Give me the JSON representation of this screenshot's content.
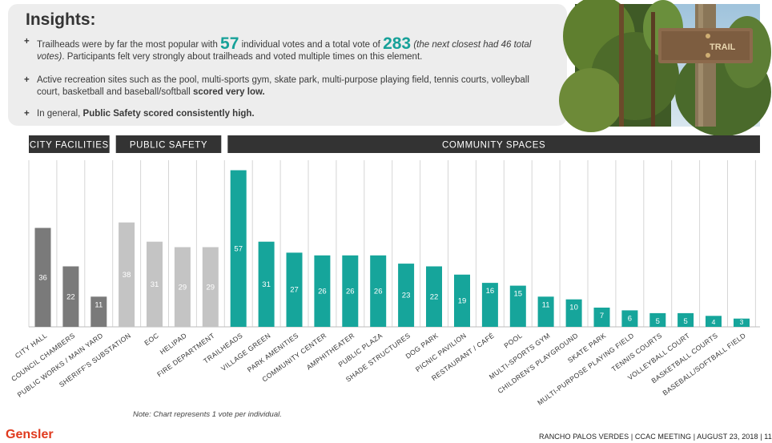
{
  "insights": {
    "title": "Insights:",
    "bullet_mark": "+",
    "b1_t1": "Trailheads were by far the most popular with ",
    "b1_n1": "57",
    "b1_t2": " individual votes and a total vote of ",
    "b1_n2": "283",
    "b1_em": "(the next closest had 46 total votes)",
    "b1_t3": ". Participants felt very strongly about trailheads and voted multiple times on this element.",
    "b2_t1": "Active recreation sites such as the pool, multi-sports gym, skate park, multi-purpose playing field, tennis courts, volleyball court, basketball and baseball/softball ",
    "b2_bold": "scored very low.",
    "b3_t1": "In general, ",
    "b3_bold": "Public Safety scored consistently high."
  },
  "photo": {
    "sign_text": "TRAIL"
  },
  "chart_data": {
    "type": "bar",
    "ylim": [
      0,
      60
    ],
    "grid": "vertical separators",
    "groups": [
      {
        "name": "CITY FACILITIES",
        "color": "#7a7a7a",
        "categories": [
          "CITY HALL",
          "COUNCIL CHAMBERS",
          "PUBLIC WORKS / MAIN YARD"
        ],
        "values": [
          36,
          22,
          11
        ]
      },
      {
        "name": "PUBLIC SAFETY",
        "color": "#c4c4c4",
        "categories": [
          "SHERIFF'S SUBSTATION",
          "EOC",
          "HELIPAD",
          "FIRE DEPARTMENT"
        ],
        "values": [
          38,
          31,
          29,
          29
        ]
      },
      {
        "name": "COMMUNITY SPACES",
        "color": "#16a59b",
        "categories": [
          "TRAILHEADS",
          "VILLAGE GREEN",
          "PARK AMENITIES",
          "COMMUNITY CENTER",
          "AMPHITHEATER",
          "PUBLIC PLAZA",
          "SHADE STRUCTURES",
          "DOG PARK",
          "PICNIC PAVILION",
          "RESTAURANT / CAFÉ",
          "POOL",
          "MULTI-SPORTS GYM",
          "CHILDREN'S PLAYGROUND",
          "SKATE PARK",
          "MULTI-PURPOSE PLAYING FIELD",
          "TENNIS COURTS",
          "VOLLEYBALL COURT",
          "BASKETBALL COURTS",
          "BASEBALL/SOFTBALL FIELD"
        ],
        "values": [
          57,
          31,
          27,
          26,
          26,
          26,
          23,
          22,
          19,
          16,
          15,
          11,
          10,
          7,
          6,
          5,
          5,
          4,
          3
        ]
      }
    ]
  },
  "note": "Note: Chart represents 1 vote per individual.",
  "logo": "Gensler",
  "footer": "RANCHO PALOS VERDES | CCAC MEETING | AUGUST 23, 2018 | 11"
}
